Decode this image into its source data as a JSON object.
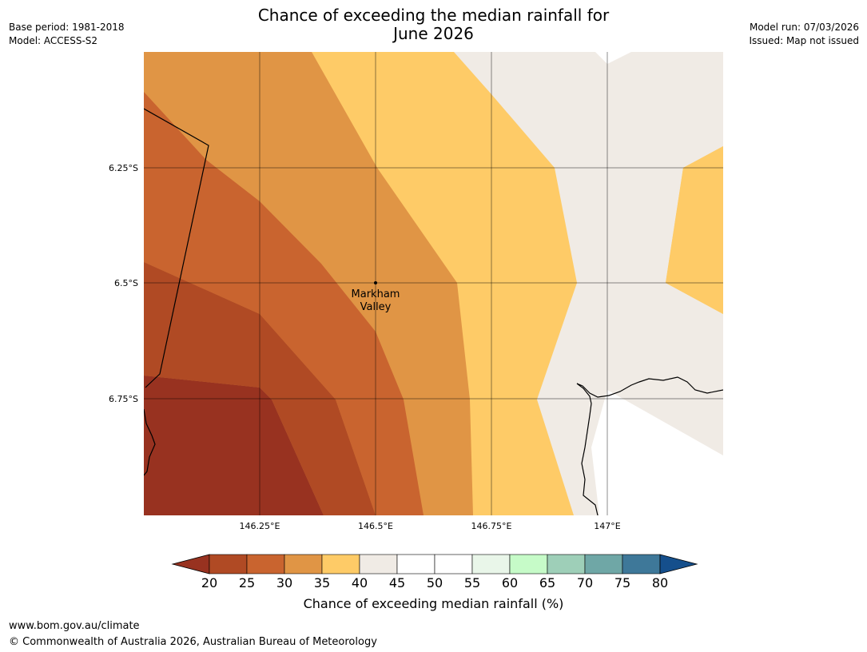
{
  "title": {
    "line1": "Chance of exceeding the median rainfall for",
    "line2": "June 2026"
  },
  "meta_left": {
    "base_period": "Base period: 1981-2018",
    "model": "Model: ACCESS-S2"
  },
  "meta_right": {
    "model_run": "Model run: 07/03/2026",
    "issued": "Issued: Map not issued"
  },
  "map": {
    "lat_labels": [
      "6.25°S",
      "6.5°S",
      "6.75°S"
    ],
    "lon_labels": [
      "146.25°E",
      "146.5°E",
      "146.75°E",
      "147°E"
    ],
    "place": {
      "line1": "Markham",
      "line2": "Valley"
    }
  },
  "colorbar": {
    "ticks": [
      "20",
      "25",
      "30",
      "35",
      "40",
      "45",
      "50",
      "55",
      "60",
      "65",
      "70",
      "75",
      "80"
    ],
    "colors": [
      "#983220",
      "#b04a24",
      "#c9642f",
      "#e09545",
      "#fecb67",
      "#f0ebe5",
      "#ffffff",
      "#ffffff",
      "#e9f6e9",
      "#c6fbc8",
      "#9ecfb8",
      "#6fa7a6",
      "#3e7899",
      "#154f8c"
    ],
    "label": "Chance of exceeding median rainfall (%)"
  },
  "footer": {
    "url": "www.bom.gov.au/climate",
    "copyright": "© Commonwealth of Australia 2026, Australian Bureau of Meteorology"
  }
}
